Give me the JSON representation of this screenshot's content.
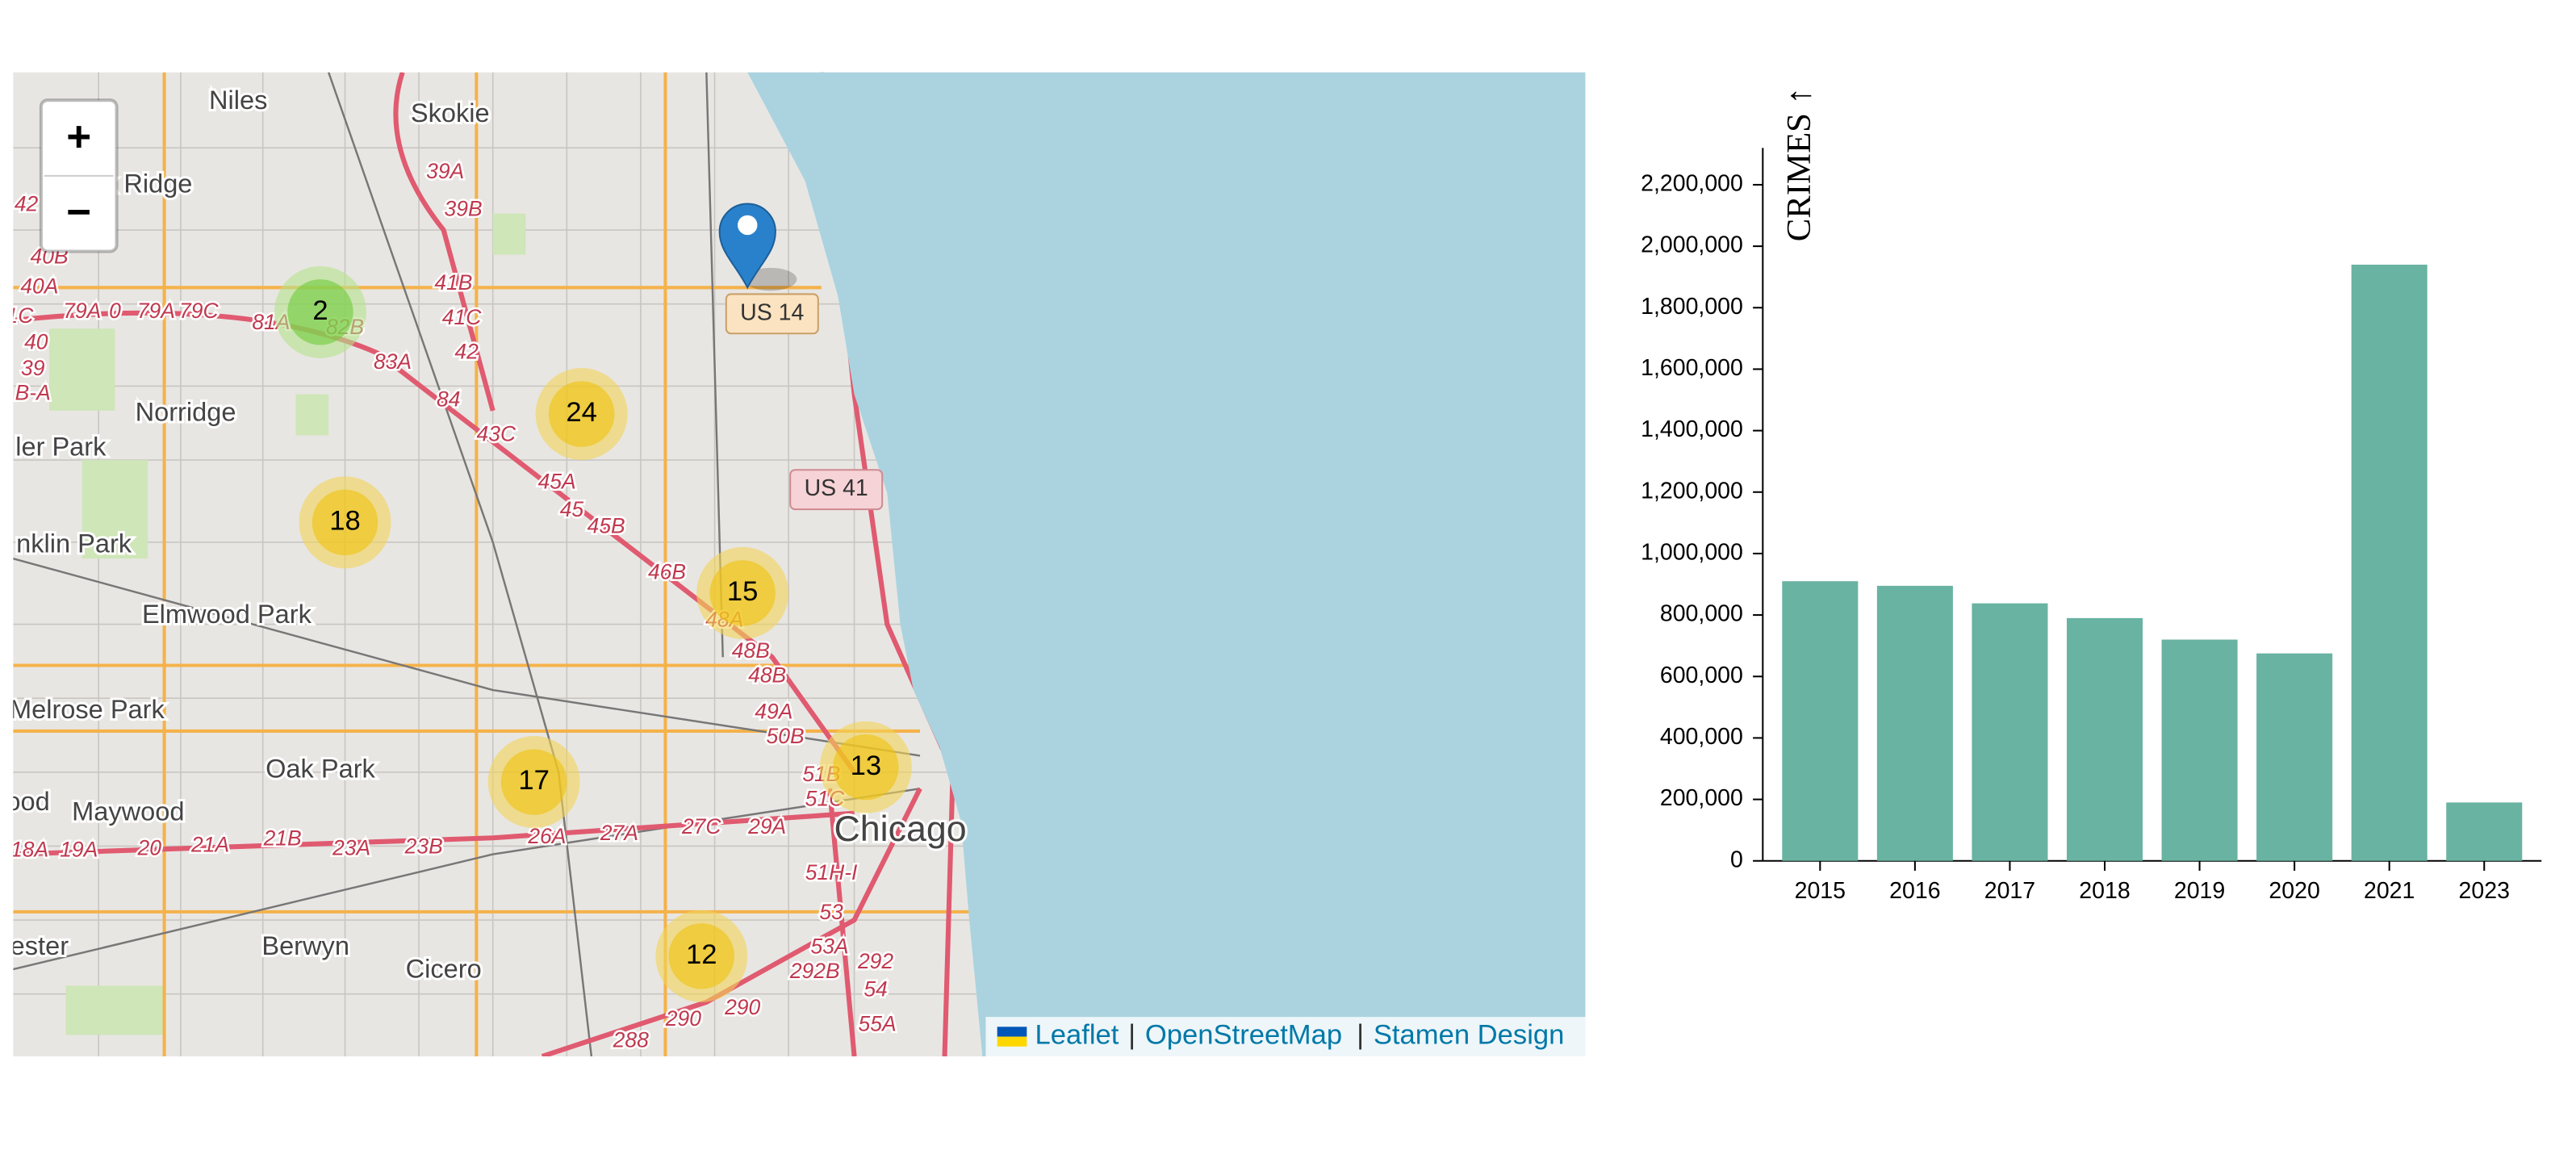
{
  "map": {
    "zoom_in": "+",
    "zoom_out": "−",
    "places": [
      "Niles",
      "Skokie",
      "k Ridge",
      "Norridge",
      "ler Park",
      "nklin Park",
      "Elmwood Park",
      "Melrose Park",
      "Oak Park",
      "ood",
      "Maywood",
      "Berwyn",
      "Cicero",
      "ester",
      "Chicago"
    ],
    "shields": [
      "US 14",
      "US 41"
    ],
    "exits": [
      "39A",
      "39B",
      "41B",
      "41C",
      "42",
      "83A",
      "84",
      "43C",
      "45A",
      "45",
      "45B",
      "46B",
      "48A",
      "48B",
      "48B",
      "49A",
      "50B",
      "51B",
      "51C",
      "51H-I",
      "53",
      "53A",
      "292",
      "292B",
      "54",
      "55A",
      "290",
      "290",
      "288",
      "26A",
      "27A",
      "27C",
      "29A",
      "23B",
      "23A",
      "21B",
      "21A",
      "20",
      "19A",
      "18A",
      "40B",
      "40A",
      "79A",
      "0",
      "79A",
      "79C",
      "81A",
      "82B",
      "1C",
      "40",
      "39",
      "B-A",
      "42"
    ],
    "clusters": [
      2,
      24,
      18,
      15,
      13,
      17,
      12
    ],
    "attribution": {
      "links": [
        "Leaflet",
        "OpenStreetMap",
        "Stamen Design"
      ],
      "separator": "|"
    }
  },
  "chart_data": {
    "type": "bar",
    "y_label": "CRIMES ↑",
    "categories": [
      "2015",
      "2016",
      "2017",
      "2018",
      "2019",
      "2020",
      "2021",
      "2023"
    ],
    "values": [
      910000,
      895000,
      838000,
      790000,
      720000,
      675000,
      1940000,
      190000
    ],
    "color": "#69b3a2",
    "ylim": [
      0,
      2320000
    ],
    "yticks": [
      0,
      {
        "value": 200000,
        "label": "200,000"
      },
      {
        "value": 400000,
        "label": "400,000"
      },
      {
        "value": 600000,
        "label": "600,000"
      },
      {
        "value": 800000,
        "label": "800,000"
      },
      {
        "value": 1000000,
        "label": "1,000,000"
      },
      {
        "value": 1200000,
        "label": "1,200,000"
      },
      {
        "value": 1400000,
        "label": "1,400,000"
      },
      {
        "value": 1600000,
        "label": "1,600,000"
      },
      {
        "value": 1800000,
        "label": "1,800,000"
      },
      {
        "value": 2000000,
        "label": "2,000,000"
      },
      {
        "value": 2200000,
        "label": "2,200,000"
      }
    ]
  }
}
